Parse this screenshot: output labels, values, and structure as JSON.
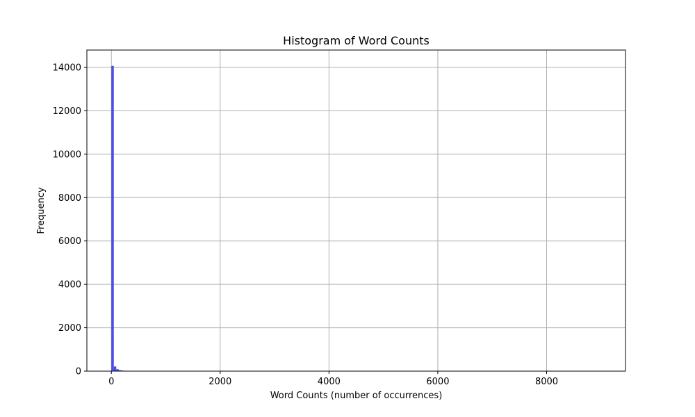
{
  "chart_data": {
    "type": "histogram",
    "title": "Histogram of Word Counts",
    "xlabel": "Word Counts (number of occurrences)",
    "ylabel": "Frequency",
    "xlim": [
      -450,
      9450
    ],
    "ylim": [
      0,
      14800
    ],
    "x_ticks": [
      0,
      2000,
      4000,
      6000,
      8000
    ],
    "x_tick_labels": [
      "0",
      "2000",
      "4000",
      "6000",
      "8000"
    ],
    "y_ticks": [
      0,
      2000,
      4000,
      6000,
      8000,
      10000,
      12000,
      14000
    ],
    "y_tick_labels": [
      "0",
      "2000",
      "4000",
      "6000",
      "8000",
      "10000",
      "12000",
      "14000"
    ],
    "grid": true,
    "bar_color": "#3a3ae8",
    "bin_start": 0,
    "bin_width": 45,
    "counts": [
      14070,
      215,
      90,
      45,
      28,
      18,
      12,
      9,
      7,
      5,
      4,
      3,
      3,
      2,
      2,
      2,
      1,
      1,
      1,
      1,
      1,
      1,
      1,
      1,
      1,
      1,
      1,
      1,
      1
    ]
  }
}
